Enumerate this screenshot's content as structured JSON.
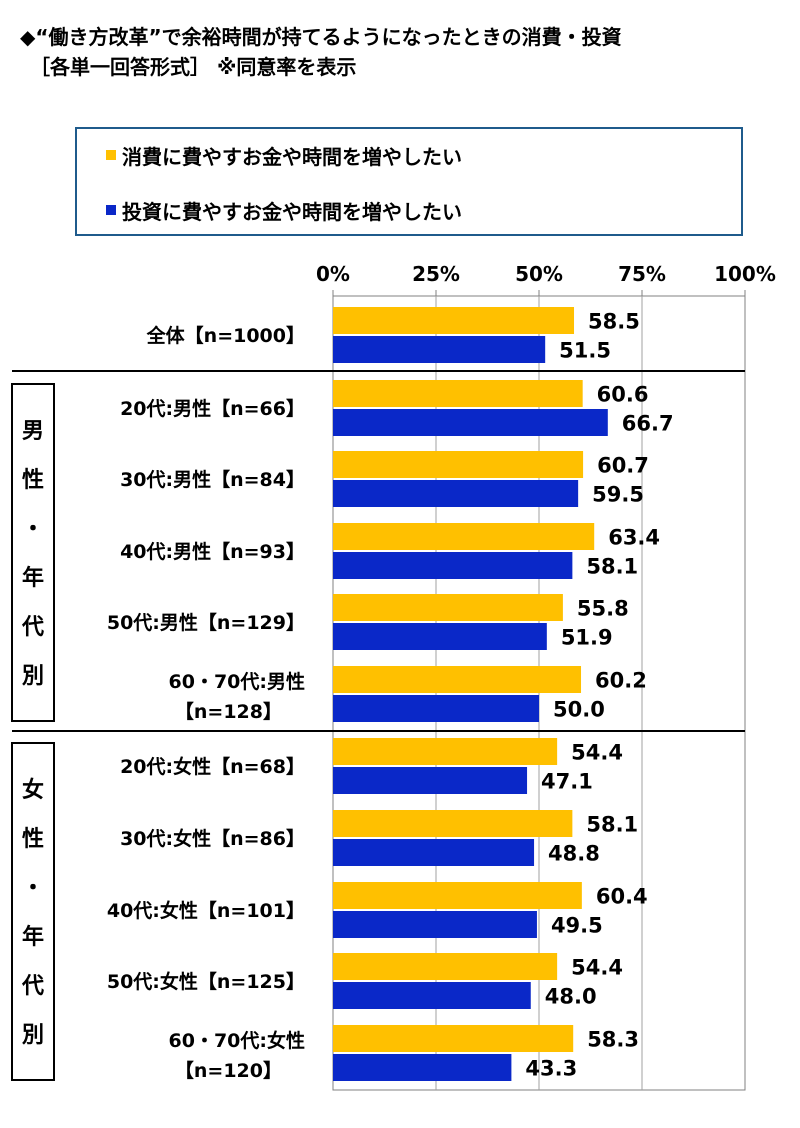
{
  "title": "◆“働き方改革”で余裕時間が持てるようになったときの消費・投資\n　［各単一回答形式］ ※同意率を表示",
  "colors": {
    "consumption": "#FFC000",
    "investment": "#0A28C8",
    "frame": "#1f5b8c"
  },
  "legend": [
    {
      "label": "消費に費やすお金や時間を増やしたい",
      "color": "#FFC000"
    },
    {
      "label": "投資に費やすお金や時間を増やしたい",
      "color": "#0A28C8"
    }
  ],
  "chart_data": {
    "type": "bar",
    "orientation": "horizontal",
    "xlim": [
      0,
      100
    ],
    "ticks": [
      "0%",
      "25%",
      "50%",
      "75%",
      "100%"
    ],
    "grid": true,
    "legend_position": "top",
    "categories": [
      {
        "lines": [
          "全体【n=1000】"
        ]
      },
      {
        "lines": [
          "20代:男性【n=66】"
        ]
      },
      {
        "lines": [
          "30代:男性【n=84】"
        ]
      },
      {
        "lines": [
          "40代:男性【n=93】"
        ]
      },
      {
        "lines": [
          "50代:男性【n=129】"
        ]
      },
      {
        "lines": [
          "60・70代:男性",
          "【n=128】"
        ]
      },
      {
        "lines": [
          "20代:女性【n=68】"
        ]
      },
      {
        "lines": [
          "30代:女性【n=86】"
        ]
      },
      {
        "lines": [
          "40代:女性【n=101】"
        ]
      },
      {
        "lines": [
          "50代:女性【n=125】"
        ]
      },
      {
        "lines": [
          "60・70代:女性",
          "【n=120】"
        ]
      }
    ],
    "series": [
      {
        "name": "消費に費やすお金や時間を増やしたい",
        "values": [
          "58.5",
          "60.6",
          "60.7",
          "63.4",
          "55.8",
          "60.2",
          "54.4",
          "58.1",
          "60.4",
          "54.4",
          "58.3"
        ]
      },
      {
        "name": "投資に費やすお金や時間を増やしたい",
        "values": [
          "51.5",
          "66.7",
          "59.5",
          "58.1",
          "51.9",
          "50.0",
          "47.1",
          "48.8",
          "49.5",
          "48.0",
          "43.3"
        ]
      }
    ],
    "groups": [
      {
        "label": "男性・年代別",
        "chars": [
          "男",
          "性",
          "・",
          "年",
          "代",
          "別"
        ],
        "categories": [
          1,
          5
        ]
      },
      {
        "label": "女性・年代別",
        "chars": [
          "女",
          "性",
          "・",
          "年",
          "代",
          "別"
        ],
        "categories": [
          6,
          10
        ]
      }
    ]
  }
}
